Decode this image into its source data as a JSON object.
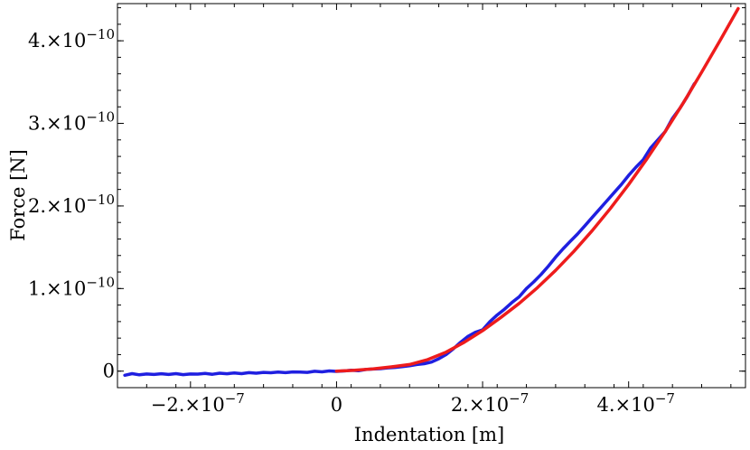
{
  "chart_data": {
    "type": "line",
    "title": "",
    "xlabel": "Indentation [m]",
    "ylabel": "Force [N]",
    "xlim": [
      -3e-07,
      5.6e-07
    ],
    "ylim": [
      -2e-11,
      4.45e-10
    ],
    "grid": false,
    "legend": "none",
    "x_ticks": [
      {
        "value": -2e-07,
        "base": "−2.×10",
        "exp": "−7"
      },
      {
        "value": 0,
        "base": "0",
        "exp": ""
      },
      {
        "value": 2e-07,
        "base": "2.×10",
        "exp": "−7"
      },
      {
        "value": 4e-07,
        "base": "4.×10",
        "exp": "−7"
      }
    ],
    "y_ticks": [
      {
        "value": 0,
        "base": "0",
        "exp": ""
      },
      {
        "value": 1e-10,
        "base": "1.×10",
        "exp": "−10"
      },
      {
        "value": 2e-10,
        "base": "2.×10",
        "exp": "−10"
      },
      {
        "value": 3e-10,
        "base": "3.×10",
        "exp": "−10"
      },
      {
        "value": 4e-10,
        "base": "4.×10",
        "exp": "−10"
      }
    ],
    "series": [
      {
        "color": "#1f1fe0",
        "style": "measured (noisy)",
        "x": [
          -2.9e-07,
          -2.8e-07,
          -2.7e-07,
          -2.6e-07,
          -2.5e-07,
          -2.4e-07,
          -2.3e-07,
          -2.2e-07,
          -2.1e-07,
          -2e-07,
          -1.9e-07,
          -1.8e-07,
          -1.7e-07,
          -1.6e-07,
          -1.5e-07,
          -1.4e-07,
          -1.3e-07,
          -1.2e-07,
          -1.1e-07,
          -1e-07,
          -9e-08,
          -8e-08,
          -7e-08,
          -6e-08,
          -5e-08,
          -4e-08,
          -3e-08,
          -2e-08,
          -1e-08,
          0,
          1e-08,
          2e-08,
          3e-08,
          4e-08,
          5e-08,
          6e-08,
          7e-08,
          8e-08,
          9e-08,
          1e-07,
          1.1e-07,
          1.2e-07,
          1.3e-07,
          1.4e-07,
          1.5e-07,
          1.6e-07,
          1.7e-07,
          1.8e-07,
          1.9e-07,
          2e-07,
          2.1e-07,
          2.2e-07,
          2.3e-07,
          2.4e-07,
          2.5e-07,
          2.6e-07,
          2.7e-07,
          2.8e-07,
          2.9e-07,
          3e-07,
          3.1e-07,
          3.2e-07,
          3.3e-07,
          3.4e-07,
          3.5e-07,
          3.6e-07,
          3.7e-07,
          3.8e-07,
          3.9e-07,
          4e-07,
          4.1e-07,
          4.2e-07,
          4.3e-07,
          4.4e-07,
          4.5e-07,
          4.6e-07,
          4.7e-07,
          4.8e-07,
          4.9e-07
        ],
        "y": [
          -5e-12,
          -3e-12,
          -4.5e-12,
          -3.5e-12,
          -4e-12,
          -3.2e-12,
          -4e-12,
          -3e-12,
          -4.2e-12,
          -3.5e-12,
          -3.6e-12,
          -2.8e-12,
          -3.8e-12,
          -2.5e-12,
          -3.2e-12,
          -2.2e-12,
          -3e-12,
          -1.8e-12,
          -2.5e-12,
          -1.5e-12,
          -2e-12,
          -1.2e-12,
          -1.8e-12,
          -1e-12,
          -1.2e-12,
          -1.5e-12,
          -2e-13,
          -8e-13,
          2e-13,
          -3e-13,
          2e-13,
          1e-12,
          5e-13,
          2e-12,
          2.5e-12,
          3e-12,
          4e-12,
          4.5e-12,
          5.5e-12,
          6.5e-12,
          8e-12,
          9e-12,
          1.1e-11,
          1.5e-11,
          2e-11,
          2.7e-11,
          3.5e-11,
          4.2e-11,
          4.7e-11,
          5e-11,
          6e-11,
          6.8e-11,
          7.5e-11,
          8.3e-11,
          9e-11,
          1e-10,
          1.08e-10,
          1.17e-10,
          1.27e-10,
          1.38e-10,
          1.48e-10,
          1.57e-10,
          1.66e-10,
          1.76e-10,
          1.86e-10,
          1.96e-10,
          2.06e-10,
          2.16e-10,
          2.26e-10,
          2.37e-10,
          2.47e-10,
          2.56e-10,
          2.7e-10,
          2.8e-10,
          2.9e-10,
          3.06e-10,
          3.18e-10,
          3.32e-10,
          3.48e-10
        ]
      },
      {
        "color": "#ee1c1c",
        "style": "fit",
        "x": [
          0,
          2.5e-08,
          5e-08,
          7.5e-08,
          1e-07,
          1.25e-07,
          1.5e-07,
          1.75e-07,
          2e-07,
          2.25e-07,
          2.5e-07,
          2.75e-07,
          3e-07,
          3.25e-07,
          3.5e-07,
          3.75e-07,
          4e-07,
          4.25e-07,
          4.5e-07,
          4.75e-07,
          5e-07,
          5.25e-07,
          5.5e-07
        ],
        "y": [
          0,
          1e-12,
          2.8e-12,
          5.2e-12,
          8e-12,
          1.4e-11,
          2.3e-11,
          3.5e-11,
          4.9e-11,
          6.5e-11,
          8.2e-11,
          1.01e-10,
          1.22e-10,
          1.45e-10,
          1.7e-10,
          1.97e-10,
          2.26e-10,
          2.57e-10,
          2.9e-10,
          3.25e-10,
          3.62e-10,
          4e-10,
          4.39e-10
        ]
      }
    ]
  }
}
